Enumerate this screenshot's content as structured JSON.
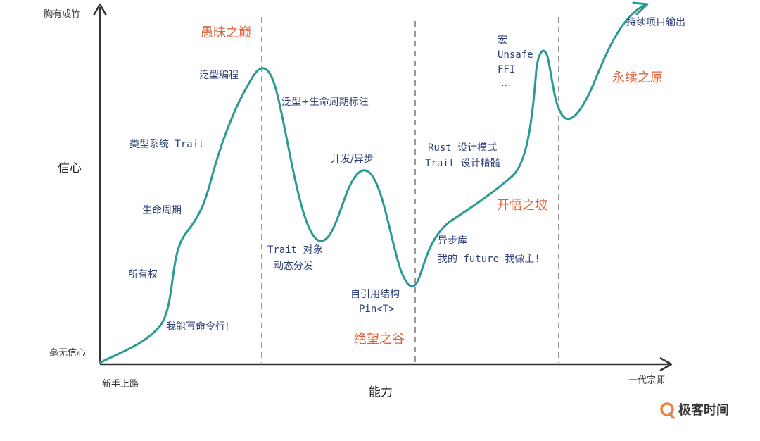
{
  "axes": {
    "y_title": "信心",
    "y_top": "胸有成竹",
    "y_bottom": "毫无信心",
    "x_title": "能力",
    "x_start": "新手上路",
    "x_end": "一代宗师"
  },
  "stages": {
    "peak": "愚昧之巅",
    "valley": "绝望之谷",
    "slope": "开悟之坡",
    "plateau": "永续之原"
  },
  "labels": {
    "l1": "我能写命令行!",
    "l2": "所有权",
    "l3": "生命周期",
    "l4": "类型系统 Trait",
    "l5": "泛型编程",
    "l6": "泛型+生命周期标注",
    "l7a": "Trait 对象",
    "l7b": "动态分发",
    "l8": "并发/异步",
    "l9a": "自引用结构",
    "l9b": "Pin<T>",
    "l10a": "异步库",
    "l10b": "我的 future 我做主!",
    "l11a": "Rust 设计模式",
    "l11b": "Trait 设计精髓",
    "l12a": "宏",
    "l12b": "Unsafe",
    "l12c": "FFI",
    "l12d": "…",
    "l13": "持续项目输出"
  },
  "brand": {
    "name": "极客时间"
  },
  "colors": {
    "curve": "#2a9a92",
    "stage": "#e0623c",
    "label": "#2e3f78",
    "axis": "#333333",
    "divider": "#999999"
  }
}
